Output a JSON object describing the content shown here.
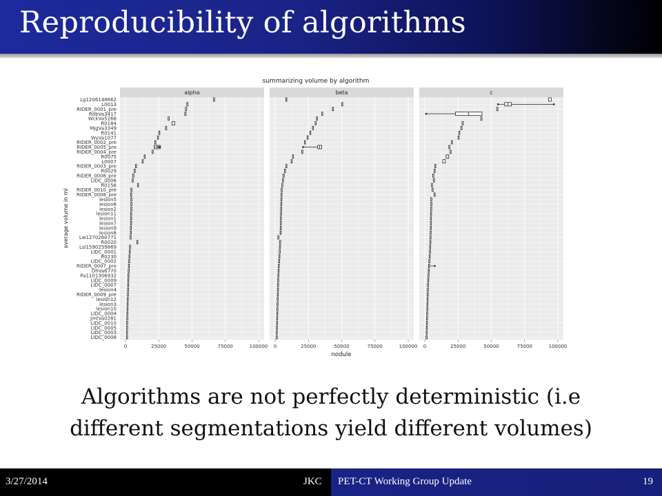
{
  "slide": {
    "title": "Reproducibility of algorithms",
    "caption_line1": "Algorithms are not perfectly deterministic (i.e",
    "caption_line2": "different segmentations yield different volumes)"
  },
  "footer": {
    "date": "3/27/2014",
    "author": "JKC",
    "event": "PET-CT Working Group Update",
    "page": "19"
  },
  "chart_data": {
    "type": "boxplot",
    "orientation": "horizontal",
    "title": "summarizing volume by algorithm",
    "xlabel": "nodule",
    "ylabel": "average volume in ml",
    "xlim": [
      0,
      100000
    ],
    "xticks": [
      "0",
      "25000",
      "50000",
      "75000",
      "100000"
    ],
    "xtick_values": [
      0,
      25000,
      50000,
      75000,
      100000
    ],
    "grid": true,
    "panel_background": "#ebebeb",
    "strip_background": "#d9d9d9",
    "categories": [
      "Lg1206148662",
      "L0013",
      "RIDER_0001_pre",
      "RdbVa3417",
      "WckVa5268",
      "R0184",
      "MjgVa3349",
      "R0141",
      "WyVa1077",
      "RIDER_0002_pre",
      "RIDER_0005_pre",
      "RIDER_0004_pre",
      "R0075",
      "L0007",
      "RIDER_0003_pre",
      "R0029",
      "RIDER_0006_pre",
      "LIDC_0006",
      "R0156",
      "RIDER_0010_pre",
      "RIDER_0008_pre",
      "lesion5",
      "lesion6",
      "lesion2",
      "lesion11",
      "lesion1",
      "lesion7",
      "lesion9",
      "lesion8",
      "Lw1270260771",
      "R0020",
      "Lsl1590259869",
      "LIDC_0001",
      "R0230",
      "LIDC_0002",
      "RIDER_0007_pre",
      "DhVa6770",
      "Pa1101306932",
      "LIDC_0009",
      "LIDC_0007",
      "lesion4",
      "RIDER_0009_pre",
      "lesion12",
      "lesion3",
      "lesion10",
      "LIDC_0004",
      "JmtVa0281",
      "LIDC_0010",
      "LIDC_0005",
      "LIDC_0003",
      "LIDC_0008"
    ],
    "panels": [
      {
        "name": "alpha",
        "boxes": [
          [
            66000,
            67000
          ],
          [
            46000,
            47000
          ],
          [
            45000,
            46000
          ],
          [
            44500,
            45500
          ],
          [
            32000,
            32500
          ],
          [
            35000,
            37000
          ],
          [
            30000,
            31000
          ],
          [
            25000,
            25700
          ],
          [
            24000,
            24700
          ],
          [
            22000,
            22700
          ],
          [
            21500,
            26000
          ],
          [
            20000,
            20700
          ],
          [
            14000,
            14700
          ],
          [
            12500,
            13200
          ],
          [
            7500,
            8100
          ],
          [
            6500,
            7100
          ],
          [
            5500,
            6100
          ],
          [
            5000,
            5600
          ],
          [
            9000,
            9600
          ],
          [
            4000,
            4600
          ],
          [
            3800,
            4400
          ],
          [
            4000,
            4600
          ],
          [
            4000,
            4600
          ],
          [
            4000,
            4600
          ],
          [
            3800,
            4400
          ],
          [
            3800,
            4400
          ],
          [
            3800,
            4400
          ],
          [
            3600,
            4200
          ],
          [
            3600,
            4200
          ],
          [
            3400,
            4000
          ],
          [
            8500,
            9100
          ],
          [
            3000,
            3600
          ],
          [
            2800,
            3400
          ],
          [
            2600,
            3200
          ],
          [
            2400,
            3000
          ],
          [
            2200,
            2800
          ],
          [
            2000,
            2600
          ],
          [
            1800,
            2400
          ],
          [
            1700,
            2300
          ],
          [
            1600,
            2200
          ],
          [
            1500,
            2100
          ],
          [
            1400,
            2000
          ],
          [
            1300,
            1900
          ],
          [
            1200,
            1800
          ],
          [
            1100,
            1700
          ],
          [
            1000,
            1600
          ],
          [
            900,
            1500
          ],
          [
            800,
            1400
          ],
          [
            800,
            1400
          ],
          [
            700,
            1300
          ],
          [
            700,
            1300
          ]
        ],
        "outliers": [
          [
            10,
            25000,
            "left"
          ],
          [
            10,
            26000,
            "right"
          ]
        ]
      },
      {
        "name": "beta",
        "boxes": [
          [
            8000,
            8600
          ],
          [
            50000,
            50600
          ],
          [
            43000,
            43600
          ],
          [
            35000,
            35600
          ],
          [
            31000,
            31600
          ],
          [
            30000,
            30600
          ],
          [
            28000,
            28600
          ],
          [
            26000,
            26600
          ],
          [
            24000,
            24600
          ],
          [
            22000,
            22600
          ],
          [
            32000,
            35000
          ],
          [
            20000,
            20600
          ],
          [
            13000,
            13600
          ],
          [
            12000,
            12600
          ],
          [
            8000,
            8600
          ],
          [
            7000,
            7600
          ],
          [
            6000,
            6600
          ],
          [
            5500,
            6100
          ],
          [
            5000,
            5600
          ],
          [
            4500,
            5100
          ],
          [
            4400,
            5000
          ],
          [
            4300,
            4900
          ],
          [
            4200,
            4800
          ],
          [
            4100,
            4700
          ],
          [
            4000,
            4600
          ],
          [
            3900,
            4500
          ],
          [
            3900,
            4500
          ],
          [
            3800,
            4400
          ],
          [
            3700,
            4300
          ],
          [
            2000,
            2600
          ],
          [
            3400,
            4000
          ],
          [
            3200,
            3800
          ],
          [
            3000,
            3600
          ],
          [
            2800,
            3400
          ],
          [
            2600,
            3200
          ],
          [
            2400,
            3000
          ],
          [
            2200,
            2800
          ],
          [
            2000,
            2600
          ],
          [
            1900,
            2500
          ],
          [
            1800,
            2400
          ],
          [
            1700,
            2300
          ],
          [
            1600,
            2200
          ],
          [
            1500,
            2100
          ],
          [
            1400,
            2000
          ],
          [
            1300,
            1900
          ],
          [
            1200,
            1800
          ],
          [
            1100,
            1700
          ],
          [
            1000,
            1600
          ],
          [
            900,
            1500
          ],
          [
            800,
            1400
          ],
          [
            800,
            1400
          ]
        ],
        "outliers": [
          [
            10,
            21000,
            "left"
          ]
        ]
      },
      {
        "name": "c",
        "boxes": [
          [
            93000,
            95000
          ],
          [
            60000,
            65000
          ],
          [
            54000,
            55000
          ],
          [
            23000,
            43000
          ],
          [
            42000,
            43000
          ],
          [
            28000,
            29000
          ],
          [
            27000,
            28000
          ],
          [
            25500,
            26200
          ],
          [
            25000,
            25700
          ],
          [
            20000,
            20700
          ],
          [
            18000,
            18700
          ],
          [
            19000,
            19700
          ],
          [
            16000,
            18000
          ],
          [
            13500,
            15500
          ],
          [
            7500,
            8100
          ],
          [
            7000,
            7600
          ],
          [
            6000,
            6600
          ],
          [
            6500,
            7100
          ],
          [
            5000,
            5600
          ],
          [
            5500,
            6100
          ],
          [
            7000,
            7600
          ],
          [
            4500,
            5100
          ],
          [
            4500,
            5100
          ],
          [
            4400,
            5000
          ],
          [
            4300,
            4900
          ],
          [
            4200,
            4800
          ],
          [
            4200,
            4800
          ],
          [
            4100,
            4700
          ],
          [
            4000,
            4600
          ],
          [
            3900,
            4500
          ],
          [
            3800,
            4400
          ],
          [
            3600,
            4200
          ],
          [
            3500,
            4100
          ],
          [
            3300,
            3900
          ],
          [
            3000,
            3600
          ],
          [
            2800,
            3400
          ],
          [
            2600,
            3200
          ],
          [
            2400,
            3000
          ],
          [
            2200,
            2800
          ],
          [
            2000,
            2600
          ],
          [
            1900,
            2500
          ],
          [
            1800,
            2400
          ],
          [
            1700,
            2300
          ],
          [
            1600,
            2200
          ],
          [
            1500,
            2100
          ],
          [
            1400,
            2000
          ],
          [
            1300,
            1900
          ],
          [
            1200,
            1800
          ],
          [
            1100,
            1700
          ],
          [
            1000,
            1600
          ],
          [
            900,
            1500
          ]
        ],
        "outliers": [
          [
            1,
            97000,
            "right"
          ],
          [
            1,
            55000,
            "left"
          ],
          [
            3,
            1000,
            "left"
          ],
          [
            35,
            7500,
            "right"
          ]
        ]
      }
    ]
  }
}
